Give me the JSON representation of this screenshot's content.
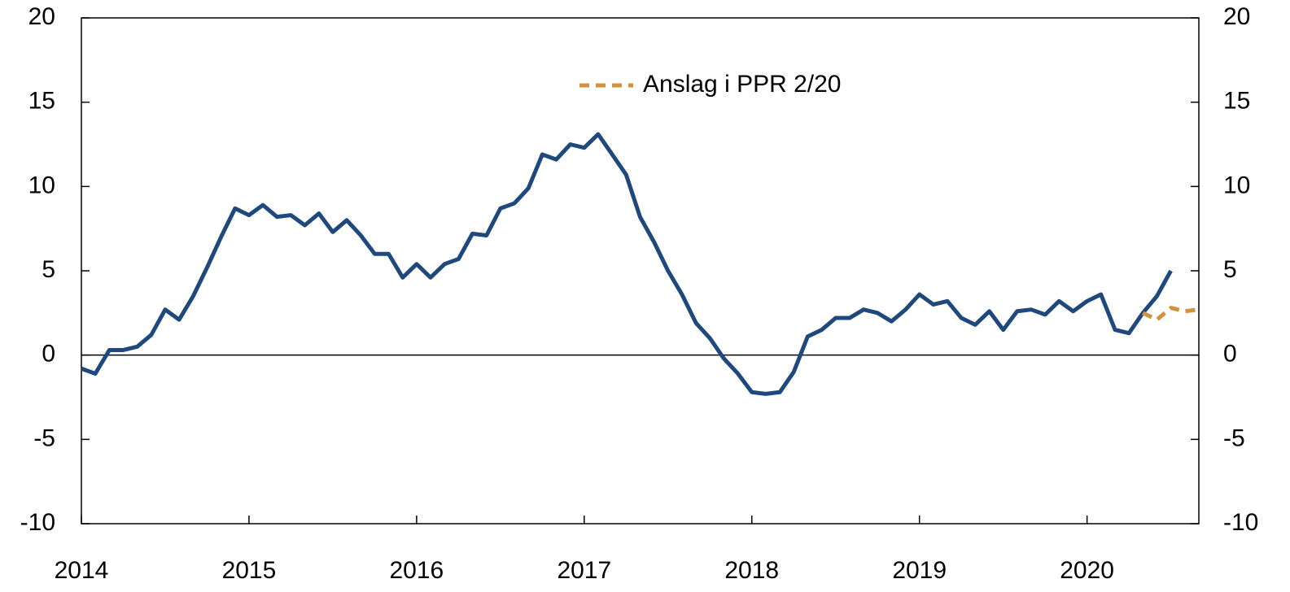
{
  "chart_data": {
    "type": "line",
    "series": [
      {
        "color": "#1f497d",
        "x": [
          2014,
          2014.083,
          2014.167,
          2014.25,
          2014.333,
          2014.417,
          2014.5,
          2014.583,
          2014.667,
          2014.75,
          2014.833,
          2014.917,
          2015,
          2015.083,
          2015.167,
          2015.25,
          2015.333,
          2015.417,
          2015.5,
          2015.583,
          2015.667,
          2015.75,
          2015.833,
          2015.917,
          2016,
          2016.083,
          2016.167,
          2016.25,
          2016.333,
          2016.417,
          2016.5,
          2016.583,
          2016.667,
          2016.75,
          2016.833,
          2016.917,
          2017,
          2017.083,
          2017.167,
          2017.25,
          2017.333,
          2017.417,
          2017.5,
          2017.583,
          2017.667,
          2017.75,
          2017.833,
          2017.917,
          2018,
          2018.083,
          2018.167,
          2018.25,
          2018.333,
          2018.417,
          2018.5,
          2018.583,
          2018.667,
          2018.75,
          2018.833,
          2018.917,
          2019,
          2019.083,
          2019.167,
          2019.25,
          2019.333,
          2019.417,
          2019.5,
          2019.583,
          2019.667,
          2019.75,
          2019.833,
          2019.917,
          2020,
          2020.083,
          2020.167,
          2020.25,
          2020.333,
          2020.417,
          2020.5
        ],
        "values": [
          -0.8,
          -1.1,
          0.3,
          0.3,
          0.5,
          1.2,
          2.7,
          2.1,
          3.5,
          5.2,
          7.0,
          8.7,
          8.3,
          8.9,
          8.2,
          8.3,
          7.7,
          8.4,
          7.3,
          8.0,
          7.1,
          6.0,
          6.0,
          4.6,
          5.4,
          4.6,
          5.4,
          5.7,
          7.2,
          7.1,
          8.7,
          9.0,
          9.9,
          11.9,
          11.6,
          12.5,
          12.3,
          13.1,
          11.9,
          10.7,
          8.2,
          6.7,
          5.0,
          3.6,
          1.9,
          1.0,
          -0.2,
          -1.1,
          -2.2,
          -2.3,
          -2.2,
          -1.0,
          1.1,
          1.5,
          2.2,
          2.2,
          2.7,
          2.5,
          2.0,
          2.7,
          3.6,
          3.0,
          3.2,
          2.2,
          1.8,
          2.6,
          1.5,
          2.6,
          2.7,
          2.4,
          3.2,
          2.6,
          3.2,
          3.6,
          1.5,
          1.3,
          2.5,
          3.5,
          5.0
        ]
      },
      {
        "name": "Anslag i PPR 2/20",
        "color": "#d4913f",
        "dashed": true,
        "x": [
          2020.333,
          2020.417,
          2020.5,
          2020.583,
          2020.667
        ],
        "values": [
          2.5,
          2.1,
          2.8,
          2.6,
          2.7
        ]
      }
    ],
    "xlim": [
      2014,
      2020.667
    ],
    "xticks": [
      2014,
      2015,
      2016,
      2017,
      2018,
      2019,
      2020
    ],
    "ylim": [
      -10,
      20
    ],
    "yticks": [
      -10,
      -5,
      0,
      5,
      10,
      15,
      20
    ],
    "y2lim": [
      -10,
      20
    ],
    "y2ticks": [
      -10,
      -5,
      0,
      5,
      10,
      15,
      20
    ],
    "grid": false,
    "legend": "top"
  }
}
